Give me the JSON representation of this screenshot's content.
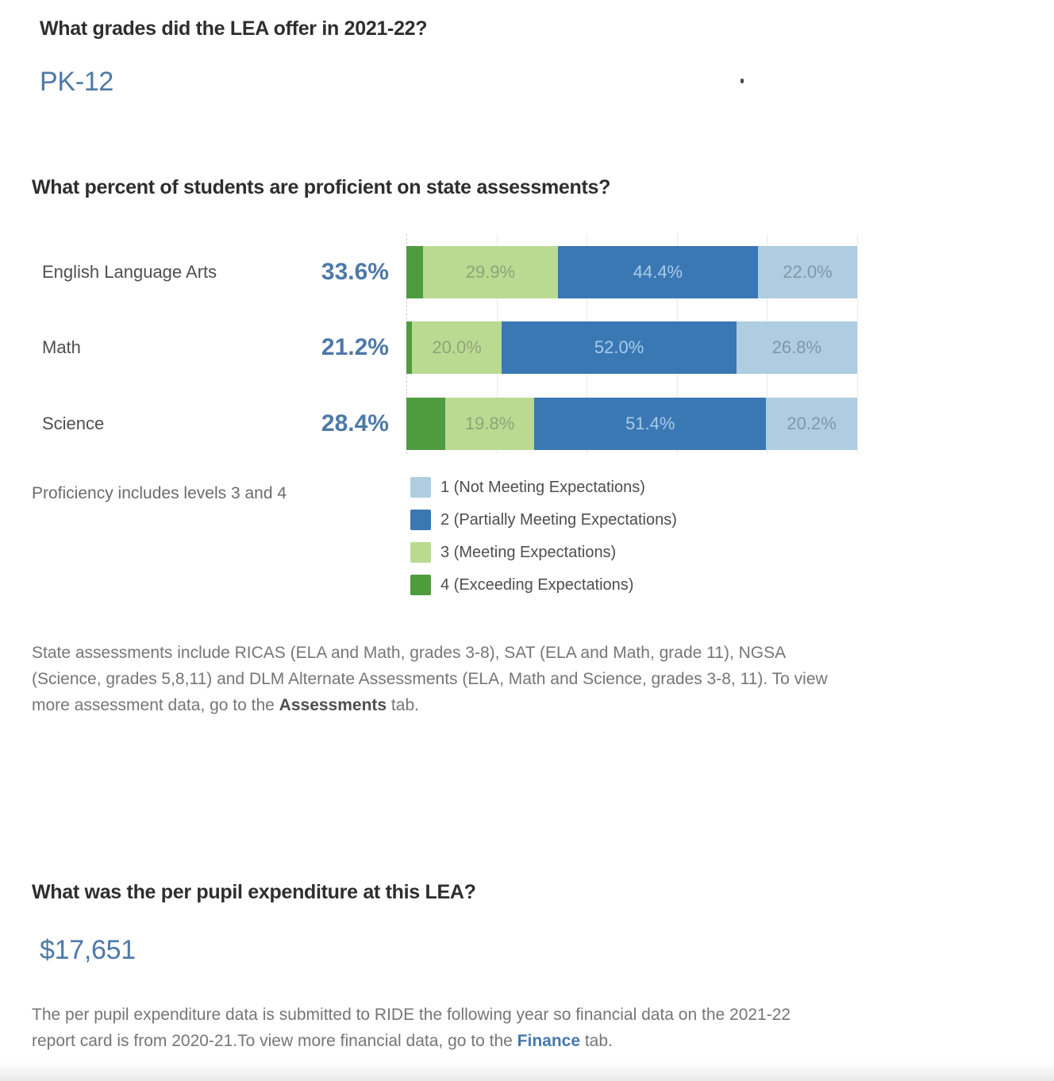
{
  "grades": {
    "question": "What grades did the LEA offer in 2021-22?",
    "answer": "PK-12"
  },
  "proficiency": {
    "question": "What percent of students are proficient on state assessments?",
    "note": "Proficiency includes levels 3 and 4",
    "legend_items": [
      {
        "label": "1 (Not Meeting Expectations)",
        "color": "#aecde1"
      },
      {
        "label": "2 (Partially Meeting Expectations)",
        "color": "#3a78b4"
      },
      {
        "label": "3 (Meeting Expectations)",
        "color": "#bada92"
      },
      {
        "label": "4 (Exceeding Expectations)",
        "color": "#4f9c3f"
      }
    ]
  },
  "chart_data": {
    "type": "bar",
    "orientation": "horizontal",
    "stacked": true,
    "title": "What percent of students are proficient on state assessments?",
    "categories": [
      "English Language Arts",
      "Math",
      "Science"
    ],
    "proficiency_labels": [
      "33.6%",
      "21.2%",
      "28.4%"
    ],
    "xlim": [
      0,
      100
    ],
    "grid": true,
    "gridline_interval_pct": 20,
    "legend_position": "bottom",
    "series": [
      {
        "name": "4 (Exceeding Expectations)",
        "color": "#4f9c3f",
        "label_color": "#e3efd8",
        "values": [
          3.7,
          1.2,
          8.6
        ]
      },
      {
        "name": "3 (Meeting Expectations)",
        "color": "#bada92",
        "label_color": "#8fa478",
        "values": [
          29.9,
          20.0,
          19.8
        ]
      },
      {
        "name": "2 (Partially Meeting Expectations)",
        "color": "#3a78b4",
        "label_color": "#a9cbe8",
        "values": [
          44.4,
          52.0,
          51.4
        ]
      },
      {
        "name": "1 (Not Meeting Expectations)",
        "color": "#aecde1",
        "label_color": "#8496a6",
        "values": [
          22.0,
          26.8,
          20.2
        ]
      }
    ],
    "min_label_width_pct": 12
  },
  "assessments_note": {
    "text_before": "State assessments include RICAS (ELA and Math, grades 3-8), SAT (ELA and Math, grade 11), NGSA (Science, grades 5,8,11) and DLM Alternate Assessments (ELA, Math and Science, grades 3-8, 11). To view more assessment data, go to the ",
    "bold": "Assessments",
    "text_after": " tab."
  },
  "expenditure": {
    "question": "What was the per pupil expenditure at this LEA?",
    "answer": "$17,651"
  },
  "finance_note": {
    "text_before": "The per pupil expenditure data is submitted to RIDE the following year so financial data on the 2021-22 report card is from 2020-21.To view more financial data, go to the ",
    "bold": "Finance",
    "text_after": " tab."
  },
  "colors": {
    "accent_blue": "#4d79a8",
    "heading": "#2e2e2e",
    "body_gray": "#767676"
  }
}
